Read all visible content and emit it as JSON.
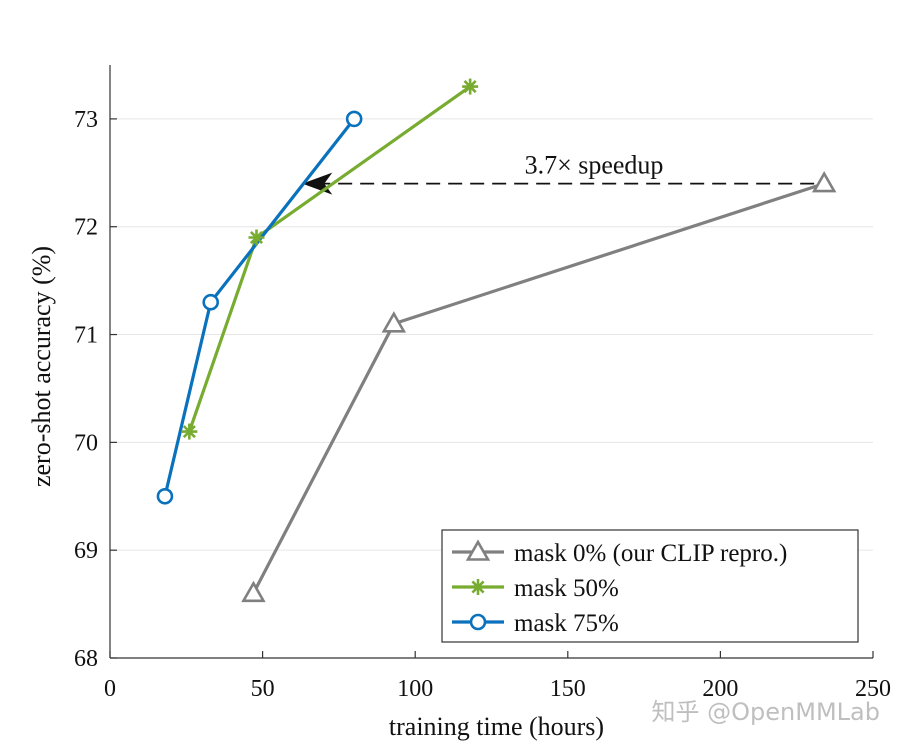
{
  "chart_data": {
    "type": "line",
    "xlabel": "training time (hours)",
    "ylabel": "zero-shot accuracy (%)",
    "xlim": [
      0,
      250
    ],
    "ylim": [
      68,
      73.5
    ],
    "xticks": [
      0,
      50,
      100,
      150,
      200,
      250
    ],
    "yticks": [
      68,
      69,
      70,
      71,
      72,
      73
    ],
    "grid": "horizontal",
    "legend_position": "bottom-right",
    "series": [
      {
        "name": "mask 0% (our CLIP repro.)",
        "color": "#808080",
        "marker": "triangle",
        "x": [
          47,
          93,
          234
        ],
        "y": [
          68.6,
          71.1,
          72.4
        ]
      },
      {
        "name": "mask 50%",
        "color": "#77ac30",
        "marker": "asterisk",
        "x": [
          26,
          48,
          118
        ],
        "y": [
          70.1,
          71.9,
          73.3
        ]
      },
      {
        "name": "mask 75%",
        "color": "#0a72bd",
        "marker": "circle",
        "x": [
          18,
          33,
          80
        ],
        "y": [
          69.5,
          71.3,
          73.0
        ]
      }
    ],
    "annotation": {
      "text": "3.7× speedup",
      "from": {
        "x": 234,
        "y": 72.4
      },
      "to": {
        "x": 63,
        "y": 72.4
      }
    }
  },
  "watermark": "知乎 @OpenMMLab"
}
